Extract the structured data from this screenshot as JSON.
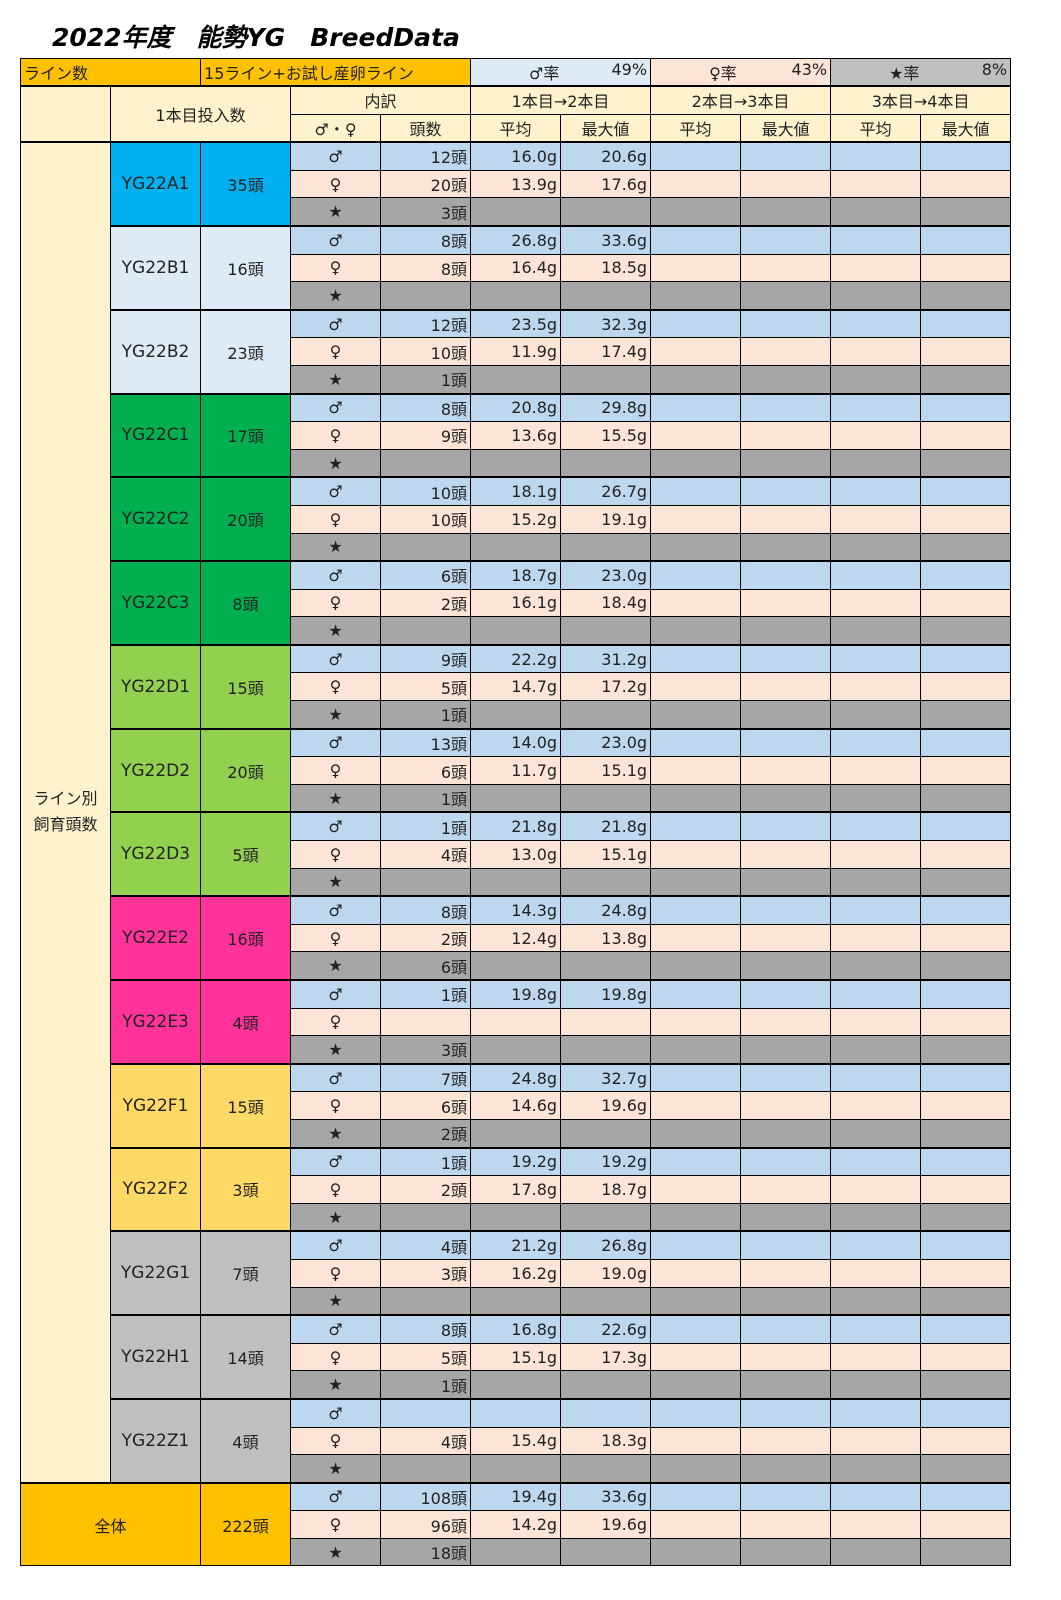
{
  "title": "2022年度　能勢YG　BreedData",
  "summary": {
    "line_count_label": "ライン数",
    "line_count_value": "15ライン+お試し産卵ライン",
    "male_rate_label": "♂率",
    "male_rate": "49%",
    "female_rate_label": "♀率",
    "female_rate": "43%",
    "star_rate_label": "★率",
    "star_rate": "8%"
  },
  "header": {
    "first_input": "1本目投入数",
    "breakdown": "内訳",
    "sex": "♂・♀",
    "heads": "頭数",
    "stage1": "1本目→2本目",
    "stage2": "2本目→3本目",
    "stage3": "3本目→4本目",
    "avg": "平均",
    "max": "最大値",
    "side_label": "ライン別\n飼育頭数"
  },
  "colors": {
    "male": "#bdd7ee",
    "female": "#fce4d6",
    "star": "#a6a6a6",
    "header": "#fff2cc",
    "accent": "#ffc000"
  },
  "sex_symbols": [
    "♂",
    "♀",
    "★"
  ],
  "lines": [
    {
      "name": "YG22A1",
      "count": "35頭",
      "color": "#00b0f0",
      "rows": [
        [
          "12頭",
          "16.0g",
          "20.6g"
        ],
        [
          "20頭",
          "13.9g",
          "17.6g"
        ],
        [
          "3頭",
          "",
          ""
        ]
      ]
    },
    {
      "name": "YG22B1",
      "count": "16頭",
      "color": "#ddebf7",
      "rows": [
        [
          "8頭",
          "26.8g",
          "33.6g"
        ],
        [
          "8頭",
          "16.4g",
          "18.5g"
        ],
        [
          "",
          "",
          ""
        ]
      ]
    },
    {
      "name": "YG22B2",
      "count": "23頭",
      "color": "#ddebf7",
      "rows": [
        [
          "12頭",
          "23.5g",
          "32.3g"
        ],
        [
          "10頭",
          "11.9g",
          "17.4g"
        ],
        [
          "1頭",
          "",
          ""
        ]
      ]
    },
    {
      "name": "YG22C1",
      "count": "17頭",
      "color": "#00b050",
      "rows": [
        [
          "8頭",
          "20.8g",
          "29.8g"
        ],
        [
          "9頭",
          "13.6g",
          "15.5g"
        ],
        [
          "",
          "",
          ""
        ]
      ]
    },
    {
      "name": "YG22C2",
      "count": "20頭",
      "color": "#00b050",
      "rows": [
        [
          "10頭",
          "18.1g",
          "26.7g"
        ],
        [
          "10頭",
          "15.2g",
          "19.1g"
        ],
        [
          "",
          "",
          ""
        ]
      ]
    },
    {
      "name": "YG22C3",
      "count": "8頭",
      "color": "#00b050",
      "rows": [
        [
          "6頭",
          "18.7g",
          "23.0g"
        ],
        [
          "2頭",
          "16.1g",
          "18.4g"
        ],
        [
          "",
          "",
          ""
        ]
      ]
    },
    {
      "name": "YG22D1",
      "count": "15頭",
      "color": "#92d050",
      "rows": [
        [
          "9頭",
          "22.2g",
          "31.2g"
        ],
        [
          "5頭",
          "14.7g",
          "17.2g"
        ],
        [
          "1頭",
          "",
          ""
        ]
      ]
    },
    {
      "name": "YG22D2",
      "count": "20頭",
      "color": "#92d050",
      "rows": [
        [
          "13頭",
          "14.0g",
          "23.0g"
        ],
        [
          "6頭",
          "11.7g",
          "15.1g"
        ],
        [
          "1頭",
          "",
          ""
        ]
      ]
    },
    {
      "name": "YG22D3",
      "count": "5頭",
      "color": "#92d050",
      "rows": [
        [
          "1頭",
          "21.8g",
          "21.8g"
        ],
        [
          "4頭",
          "13.0g",
          "15.1g"
        ],
        [
          "",
          "",
          ""
        ]
      ]
    },
    {
      "name": "YG22E2",
      "count": "16頭",
      "color": "#ff3399",
      "rows": [
        [
          "8頭",
          "14.3g",
          "24.8g"
        ],
        [
          "2頭",
          "12.4g",
          "13.8g"
        ],
        [
          "6頭",
          "",
          ""
        ]
      ]
    },
    {
      "name": "YG22E3",
      "count": "4頭",
      "color": "#ff3399",
      "rows": [
        [
          "1頭",
          "19.8g",
          "19.8g"
        ],
        [
          "",
          "",
          ""
        ],
        [
          "3頭",
          "",
          ""
        ]
      ]
    },
    {
      "name": "YG22F1",
      "count": "15頭",
      "color": "#ffd966",
      "rows": [
        [
          "7頭",
          "24.8g",
          "32.7g"
        ],
        [
          "6頭",
          "14.6g",
          "19.6g"
        ],
        [
          "2頭",
          "",
          ""
        ]
      ]
    },
    {
      "name": "YG22F2",
      "count": "3頭",
      "color": "#ffd966",
      "rows": [
        [
          "1頭",
          "19.2g",
          "19.2g"
        ],
        [
          "2頭",
          "17.8g",
          "18.7g"
        ],
        [
          "",
          "",
          ""
        ]
      ]
    },
    {
      "name": "YG22G1",
      "count": "7頭",
      "color": "#bfbfbf",
      "rows": [
        [
          "4頭",
          "21.2g",
          "26.8g"
        ],
        [
          "3頭",
          "16.2g",
          "19.0g"
        ],
        [
          "",
          "",
          ""
        ]
      ]
    },
    {
      "name": "YG22H1",
      "count": "14頭",
      "color": "#bfbfbf",
      "rows": [
        [
          "8頭",
          "16.8g",
          "22.6g"
        ],
        [
          "5頭",
          "15.1g",
          "17.3g"
        ],
        [
          "1頭",
          "",
          ""
        ]
      ]
    },
    {
      "name": "YG22Z1",
      "count": "4頭",
      "color": "#bfbfbf",
      "rows": [
        [
          "",
          "",
          ""
        ],
        [
          "4頭",
          "15.4g",
          "18.3g"
        ],
        [
          "",
          "",
          ""
        ]
      ]
    }
  ],
  "total": {
    "label": "全体",
    "count": "222頭",
    "rows": [
      [
        "108頭",
        "19.4g",
        "33.6g"
      ],
      [
        "96頭",
        "14.2g",
        "19.6g"
      ],
      [
        "18頭",
        "",
        ""
      ]
    ]
  }
}
